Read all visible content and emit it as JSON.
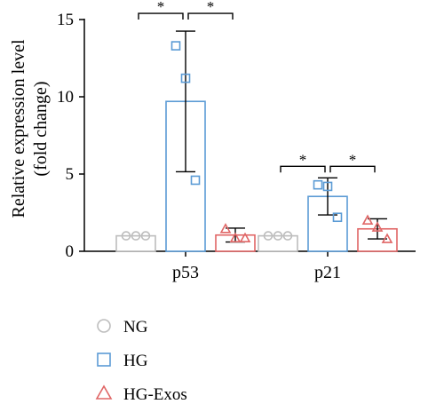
{
  "chart_data": {
    "type": "bar",
    "categories": [
      "p53",
      "p21"
    ],
    "ylabel_line1": "Relative expression level",
    "ylabel_line2": "(fold change)",
    "ylim": [
      0,
      15
    ],
    "yticks": [
      0,
      5,
      10,
      15
    ],
    "series": [
      {
        "name": "NG",
        "color": "#bdbdbd",
        "marker": "circle",
        "values": [
          1.0,
          1.0
        ],
        "errors": [
          0,
          0
        ],
        "points": [
          [
            1.0,
            1.0,
            1.0
          ],
          [
            1.0,
            1.0,
            1.0
          ]
        ]
      },
      {
        "name": "HG",
        "color": "#5b9bd5",
        "marker": "square",
        "values": [
          9.7,
          3.55
        ],
        "errors": [
          4.55,
          1.2
        ],
        "points": [
          [
            13.3,
            11.2,
            4.6
          ],
          [
            4.3,
            4.2,
            2.2
          ]
        ]
      },
      {
        "name": "HG-Exos",
        "color": "#e06666",
        "marker": "triangle",
        "values": [
          1.05,
          1.45
        ],
        "errors": [
          0.45,
          0.65
        ],
        "points": [
          [
            1.45,
            0.85,
            0.85
          ],
          [
            2.0,
            1.55,
            0.8
          ]
        ]
      }
    ],
    "significance": [
      {
        "category": "p53",
        "from": "NG",
        "to": "HG",
        "label": "*",
        "y": 15.4
      },
      {
        "category": "p53",
        "from": "HG",
        "to": "HG-Exos",
        "label": "*",
        "y": 15.4
      },
      {
        "category": "p21",
        "from": "NG",
        "to": "HG",
        "label": "*",
        "y": 5.5
      },
      {
        "category": "p21",
        "from": "HG",
        "to": "HG-Exos",
        "label": "*",
        "y": 5.5
      }
    ],
    "legend_position": "bottom-left"
  }
}
